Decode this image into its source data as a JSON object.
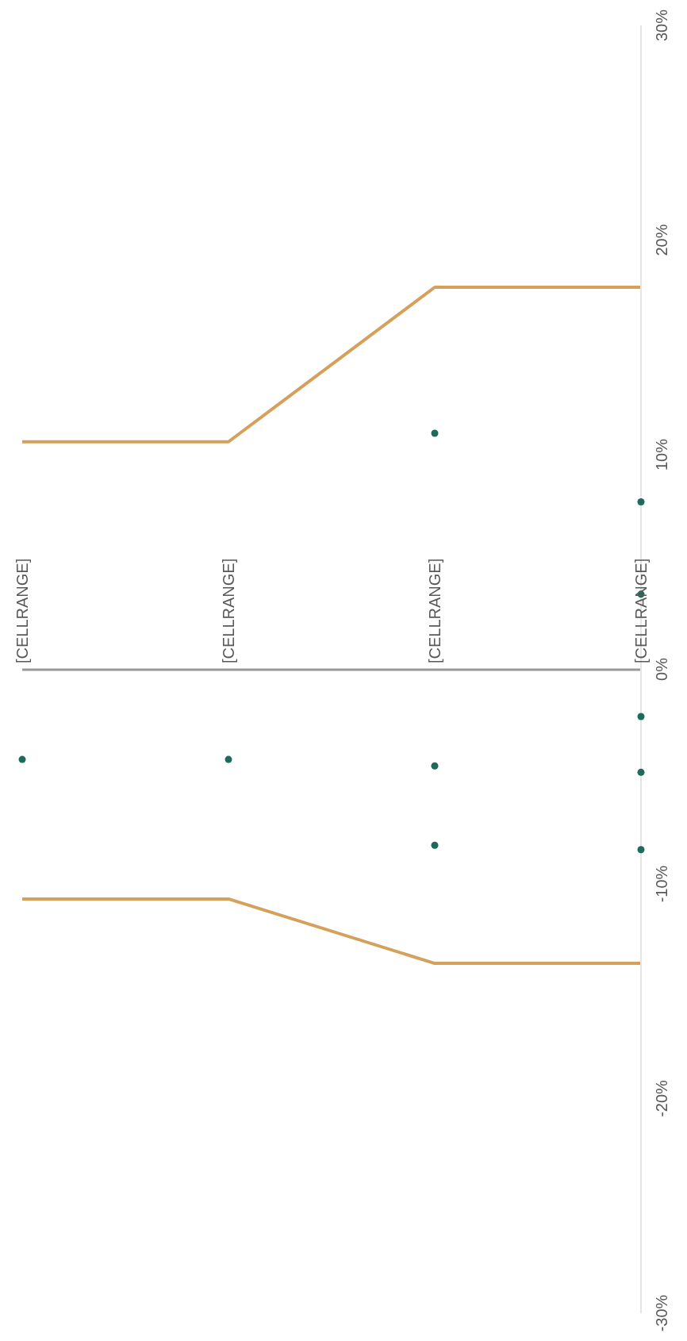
{
  "chart_data": {
    "type": "line",
    "categories": [
      "[CELLRANGE]",
      "[CELLRANGE]",
      "[CELLRANGE]",
      "[CELLRANGE]"
    ],
    "series": [
      {
        "color": "#d4a05a",
        "values": [
          10.6,
          10.6,
          17.8,
          17.8
        ]
      },
      {
        "color": "#d4a05a",
        "values": [
          -10.7,
          -10.7,
          -13.7,
          -13.7
        ]
      },
      {
        "type": "scatter",
        "color": "#1e6b5c",
        "values": [
          -4.2,
          -4.2,
          11.0,
          7.8
        ]
      },
      {
        "type": "scatter",
        "color": "#1e6b5c",
        "values": [
          null,
          null,
          -4.5,
          -2.2
        ]
      },
      {
        "type": "scatter",
        "color": "#1e6b5c",
        "values": [
          null,
          null,
          -8.2,
          -4.8
        ]
      },
      {
        "type": "scatter",
        "color": "#1e6b5c",
        "values": [
          null,
          null,
          null,
          -8.4
        ]
      },
      {
        "type": "scatter",
        "color": "#1e6b5c",
        "values": [
          null,
          null,
          null,
          3.5
        ]
      }
    ],
    "ylim": [
      -30,
      30
    ],
    "yticks": [
      {
        "value": -30,
        "label": "-30%"
      },
      {
        "value": -20,
        "label": "-20%"
      },
      {
        "value": -10,
        "label": "-10%"
      },
      {
        "value": 0,
        "label": "0%"
      },
      {
        "value": 10,
        "label": "10%"
      },
      {
        "value": 20,
        "label": "20%"
      },
      {
        "value": 30,
        "label": "30%"
      }
    ],
    "grid": false,
    "legend": false
  }
}
